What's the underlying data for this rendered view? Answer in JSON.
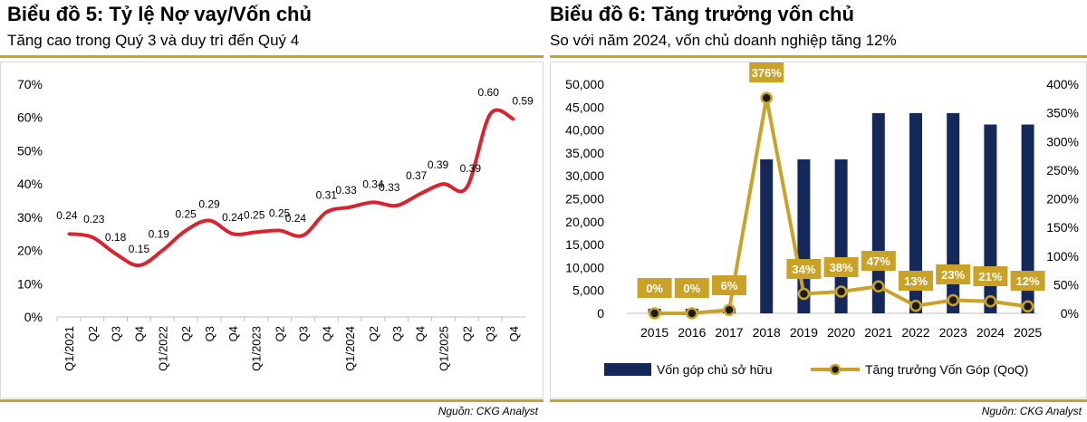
{
  "panels": [
    {
      "title": "Biểu đồ 5: Tỷ lệ Nợ vay/Vốn chủ",
      "subtitle": "Tăng cao trong Quý 3 và duy trì đến Quý 4",
      "source": "Nguồn: CKG Analyst"
    },
    {
      "title": "Biểu đồ 6: Tăng trưởng vốn chủ",
      "subtitle": "So với năm 2024, vốn chủ doanh nghiệp tăng 12%",
      "source": "Nguồn: CKG Analyst"
    }
  ],
  "colors": {
    "gold": "#C9A227",
    "red": "#D9232E",
    "navy": "#14285A"
  },
  "chart_data": [
    {
      "type": "line",
      "categories": [
        "Q1/2021",
        "Q2",
        "Q3",
        "Q4",
        "Q1/2022",
        "Q2",
        "Q3",
        "Q4",
        "Q1/2023",
        "Q2",
        "Q3",
        "Q4",
        "Q1/2024",
        "Q2",
        "Q3",
        "Q4",
        "Q1/2025",
        "Q2",
        "Q3",
        "Q4"
      ],
      "values": [
        0.24,
        0.23,
        0.18,
        0.15,
        0.19,
        0.25,
        0.29,
        0.24,
        0.25,
        0.25,
        0.24,
        0.31,
        0.33,
        0.34,
        0.33,
        0.37,
        0.39,
        0.39,
        0.6,
        0.59
      ],
      "data_labels": [
        "0.24",
        "0.23",
        "0.18",
        "0.15",
        "0.19",
        "0.25",
        "0.29",
        "0.24",
        "0.25",
        "0.25",
        "0.24",
        "0.31",
        "0.33",
        "0.34",
        "0.33",
        "0.37",
        "0.39",
        "0.39",
        "0.60",
        "0.59"
      ],
      "curve_values": [
        0.25,
        0.24,
        0.19,
        0.155,
        0.2,
        0.26,
        0.29,
        0.25,
        0.255,
        0.26,
        0.245,
        0.315,
        0.33,
        0.345,
        0.335,
        0.37,
        0.4,
        0.39,
        0.61,
        0.595
      ],
      "yticks": [
        "0%",
        "10%",
        "20%",
        "30%",
        "40%",
        "50%",
        "60%",
        "70%"
      ],
      "ylim": [
        0,
        0.7
      ],
      "grid": false
    },
    {
      "type": "bar",
      "categories": [
        "2015",
        "2016",
        "2017",
        "2018",
        "2019",
        "2020",
        "2021",
        "2022",
        "2023",
        "2024",
        "2025"
      ],
      "series": [
        {
          "name": "Vốn góp chủ sở hữu",
          "type": "bar",
          "values": [
            1000,
            1000,
            1050,
            33600,
            33600,
            33600,
            43700,
            43700,
            43700,
            41200,
            41200
          ]
        },
        {
          "name": "Tăng trưởng Vốn Góp (QoQ)",
          "type": "line",
          "values": [
            0,
            0,
            6,
            376,
            34,
            38,
            47,
            13,
            23,
            21,
            12
          ],
          "labels": [
            "0%",
            "0%",
            "6%",
            "376%",
            "34%",
            "38%",
            "47%",
            "13%",
            "23%",
            "21%",
            "12%"
          ]
        }
      ],
      "yticks_left": [
        "0",
        "5,000",
        "10,000",
        "15,000",
        "20,000",
        "25,000",
        "30,000",
        "35,000",
        "40,000",
        "45,000",
        "50,000"
      ],
      "yticks_right": [
        "0%",
        "50%",
        "100%",
        "150%",
        "200%",
        "250%",
        "300%",
        "350%",
        "400%"
      ],
      "ylim_left": [
        0,
        50000
      ],
      "ylim_right": [
        0,
        400
      ],
      "legend": "bottom",
      "grid": false
    }
  ]
}
